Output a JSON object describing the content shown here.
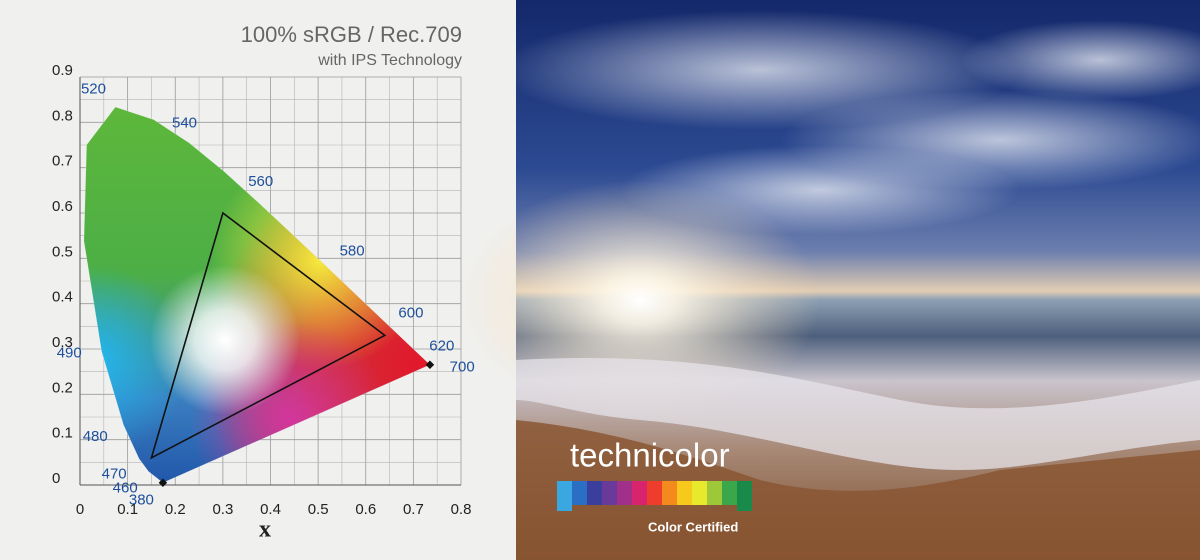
{
  "chart_data": {
    "type": "chromaticity",
    "title": "100% sRGB / Rec.709",
    "subtitle": "with IPS Technology",
    "x_label": "x",
    "xlim": [
      0,
      0.8
    ],
    "ylim": [
      0,
      0.9
    ],
    "xticks": [
      0,
      0.1,
      0.2,
      0.3,
      0.4,
      0.5,
      0.6,
      0.7,
      0.8
    ],
    "yticks": [
      0,
      0.1,
      0.2,
      0.3,
      0.4,
      0.5,
      0.6,
      0.7,
      0.8,
      0.9
    ],
    "grid": true,
    "locus": {
      "x": [
        0.1741,
        0.144,
        0.1241,
        0.0913,
        0.0454,
        0.0082,
        0.0139,
        0.0743,
        0.1547,
        0.2296,
        0.3016,
        0.3731,
        0.4441,
        0.5125,
        0.5752,
        0.627,
        0.6915,
        0.7347
      ],
      "y": [
        0.005,
        0.0297,
        0.0578,
        0.1327,
        0.295,
        0.5384,
        0.7502,
        0.8338,
        0.8059,
        0.7543,
        0.6923,
        0.6245,
        0.5547,
        0.4866,
        0.4242,
        0.3725,
        0.3083,
        0.2653
      ],
      "labels": [
        380,
        460,
        470,
        480,
        490,
        null,
        null,
        520,
        null,
        540,
        null,
        560,
        null,
        580,
        null,
        600,
        620,
        700
      ]
    },
    "gamut": {
      "x": [
        0.64,
        0.3,
        0.15
      ],
      "y": [
        0.33,
        0.6,
        0.06
      ]
    },
    "logo": {
      "brand": "technicolor",
      "caption": "Color Certified"
    }
  }
}
